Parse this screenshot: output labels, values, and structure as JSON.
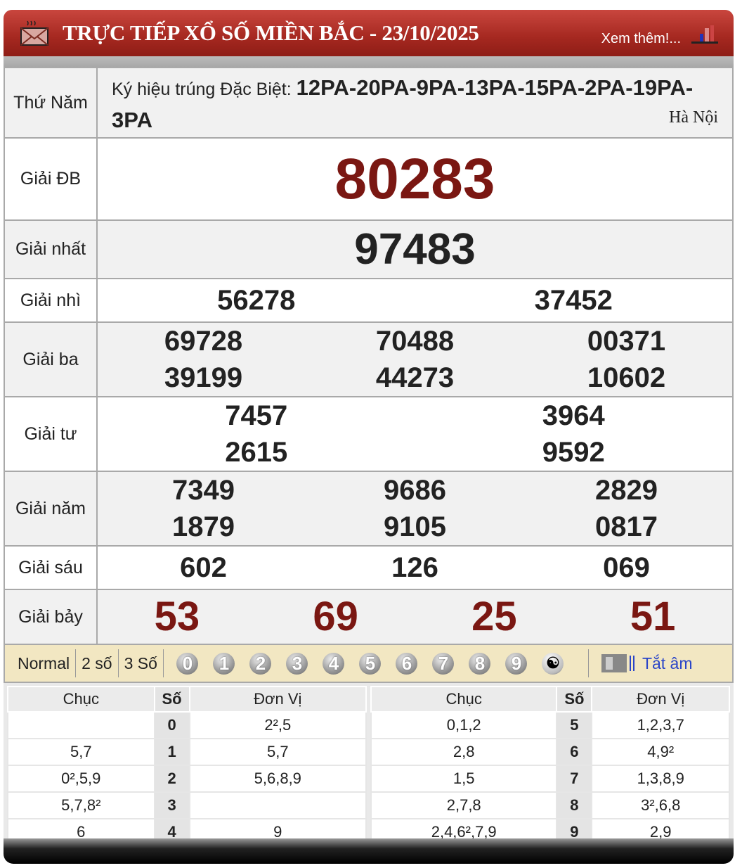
{
  "header": {
    "title": "TRỰC TIẾP XỔ SỐ MIỀN BẮC - 23/10/2025",
    "more_link": "Xem thêm!...",
    "icons": [
      "mail-icon",
      "chart-icon"
    ]
  },
  "colors": {
    "header": "#a52820",
    "accent_number": "#7a1712",
    "toolbar": "#f2e7c2",
    "mute_link": "#2a45c8"
  },
  "info": {
    "day": "Thứ Năm",
    "code_label": "Ký hiệu trúng Đặc Biệt:",
    "codes": "12PA-20PA-9PA-13PA-15PA-2PA-19PA-3PA",
    "city": "Hà Nội"
  },
  "prizes": [
    {
      "label": "Giải ĐB",
      "cols": 1,
      "numbers": [
        "80283"
      ],
      "style": "db"
    },
    {
      "label": "Giải nhất",
      "cols": 1,
      "numbers": [
        "97483"
      ],
      "style": "nhat"
    },
    {
      "label": "Giải nhì",
      "cols": 2,
      "numbers": [
        "56278",
        "37452"
      ]
    },
    {
      "label": "Giải ba",
      "cols": 3,
      "numbers": [
        "69728",
        "70488",
        "00371",
        "39199",
        "44273",
        "10602"
      ]
    },
    {
      "label": "Giải tư",
      "cols": 2,
      "numbers": [
        "7457",
        "3964",
        "2615",
        "9592"
      ]
    },
    {
      "label": "Giải năm",
      "cols": 3,
      "numbers": [
        "7349",
        "9686",
        "2829",
        "1879",
        "9105",
        "0817"
      ]
    },
    {
      "label": "Giải sáu",
      "cols": 3,
      "numbers": [
        "602",
        "126",
        "069"
      ]
    },
    {
      "label": "Giải bảy",
      "cols": 4,
      "numbers": [
        "53",
        "69",
        "25",
        "51"
      ],
      "style": "bay"
    }
  ],
  "toolbar": {
    "modes": [
      "Normal",
      "2 số",
      "3 Số"
    ],
    "digits": [
      "0",
      "1",
      "2",
      "3",
      "4",
      "5",
      "6",
      "7",
      "8",
      "9"
    ],
    "yin_yang": "☯",
    "mute_label": "Tắt âm"
  },
  "loto": {
    "headers": [
      "Chục",
      "Số",
      "Đơn Vị"
    ],
    "left": [
      [
        "",
        "0",
        "2²,5"
      ],
      [
        "5,7",
        "1",
        "5,7"
      ],
      [
        "0²,5,9",
        "2",
        "5,6,8,9"
      ],
      [
        "5,7,8²",
        "3",
        ""
      ],
      [
        "6",
        "4",
        "9"
      ]
    ],
    "right": [
      [
        "0,1,2",
        "5",
        "1,2,3,7"
      ],
      [
        "2,8",
        "6",
        "4,9²"
      ],
      [
        "1,5",
        "7",
        "1,3,8,9"
      ],
      [
        "2,7,8",
        "8",
        "3²,6,8"
      ],
      [
        "2,4,6²,7,9",
        "9",
        "2,9"
      ]
    ]
  }
}
